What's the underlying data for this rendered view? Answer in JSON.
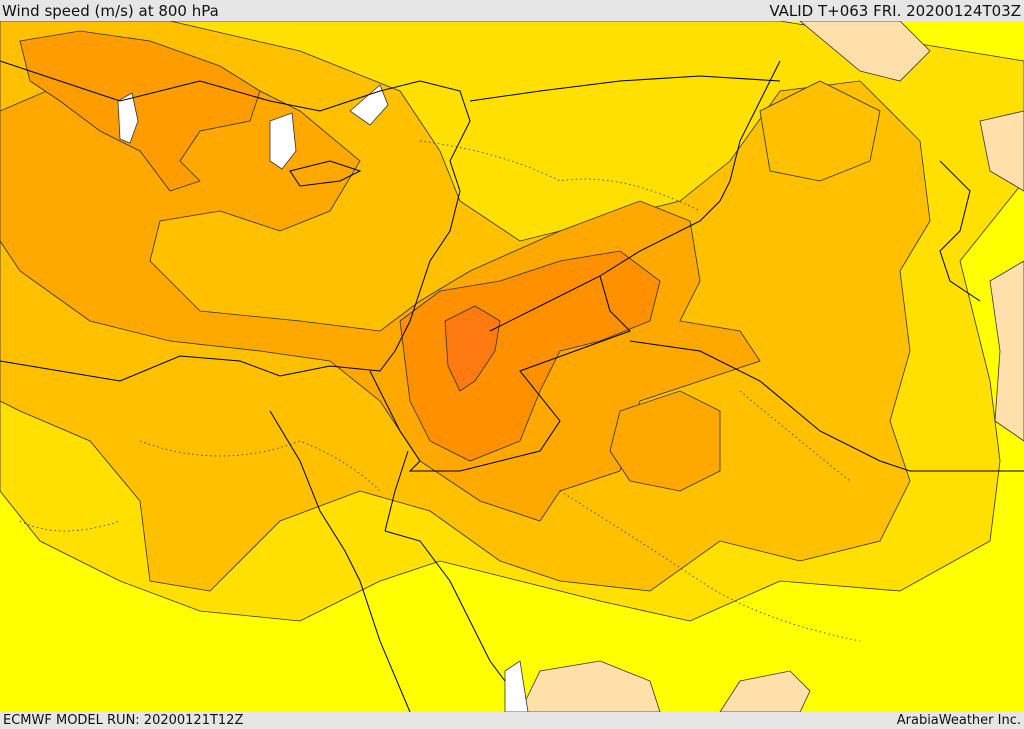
{
  "header": {
    "title": "Wind speed (m/s) at 800 hPa",
    "valid": "VALID T+063 FRI. 20200124T03Z"
  },
  "footer": {
    "model_run": "ECMWF MODEL RUN: 20200121T12Z",
    "credit": "ArabiaWeather Inc."
  },
  "map": {
    "field": "wind-speed",
    "colors": {
      "lightest": "#ffffff",
      "peach": "#ffe0aa",
      "yellow": "#ffff00",
      "gold": "#ffe000",
      "amber": "#ffc000",
      "orange": "#ffa800",
      "dark_orange": "#ff9000",
      "deep_orange": "#ff7a10",
      "contour": "#333333",
      "border": "#000000"
    }
  }
}
